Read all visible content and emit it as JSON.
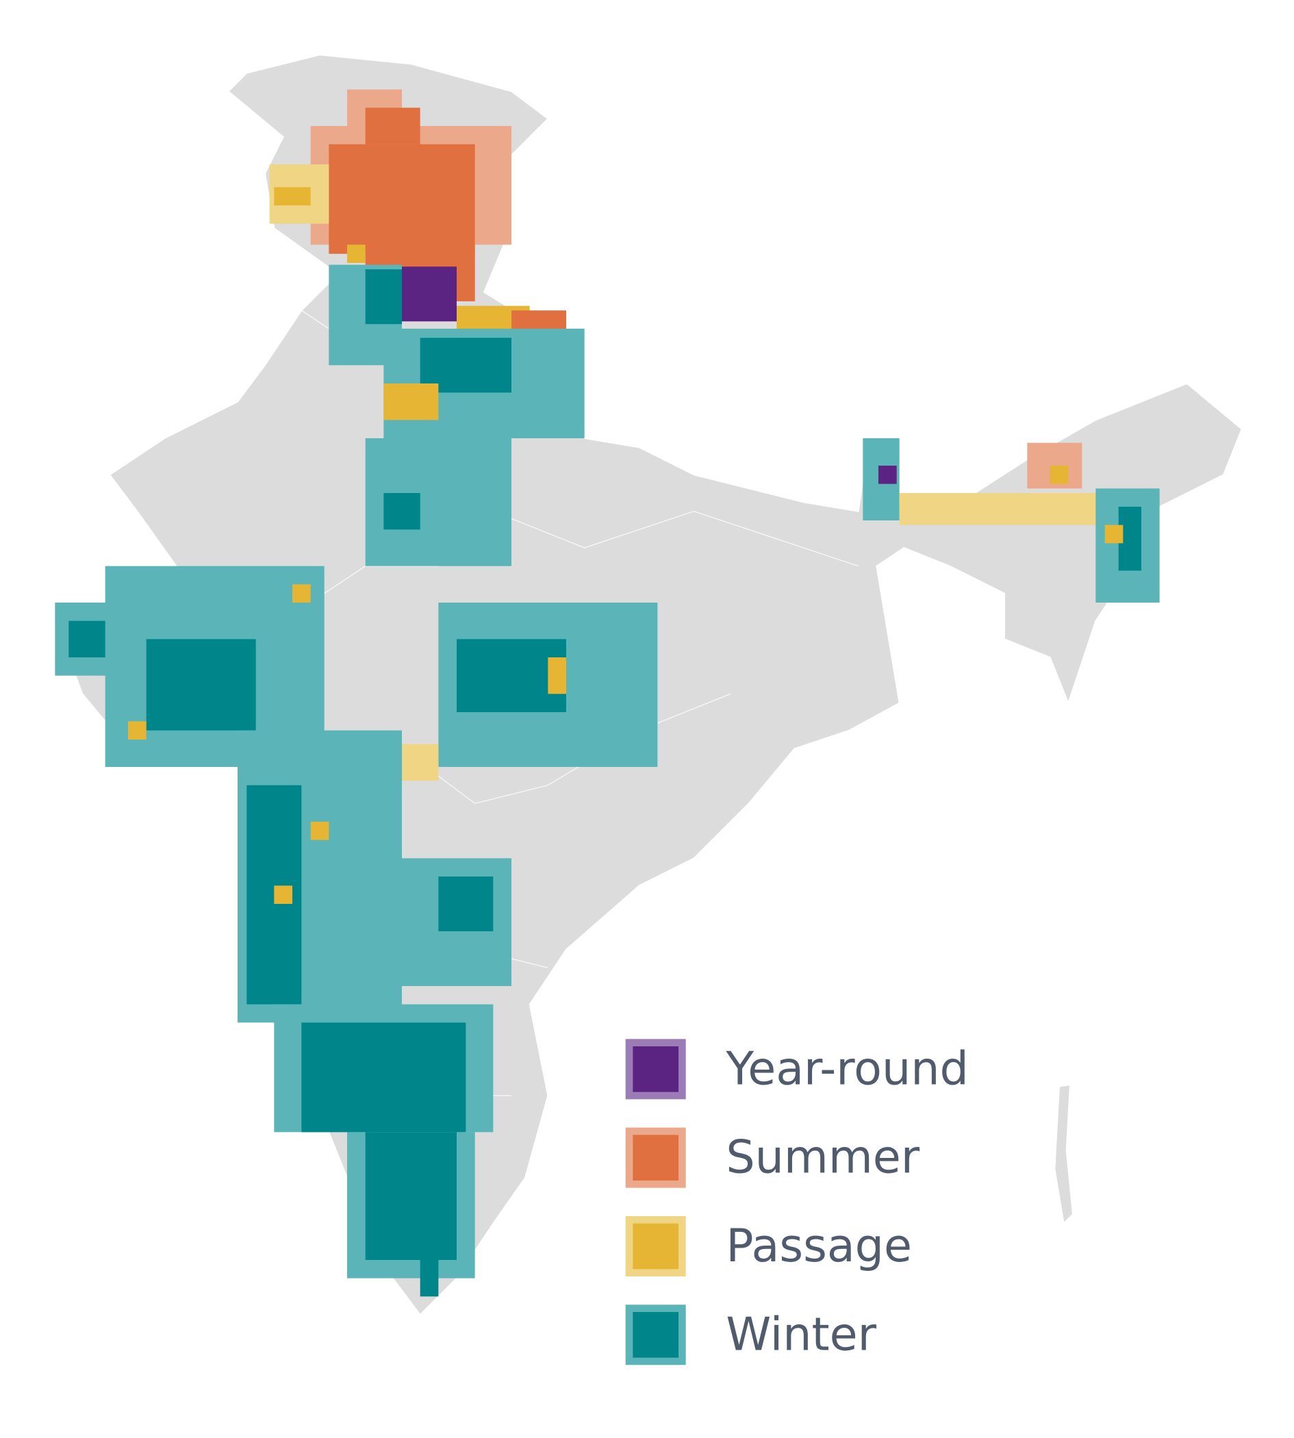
{
  "legend": {
    "items": [
      {
        "label": "Year-round",
        "color": "#5b2482",
        "border": "#9b7cb6"
      },
      {
        "label": "Summer",
        "color": "#e0703f",
        "border": "#eca88a"
      },
      {
        "label": "Passage",
        "color": "#e6b534",
        "border": "#f0d585"
      },
      {
        "label": "Winter",
        "color": "#00868a",
        "border": "#5bb5b8"
      }
    ]
  }
}
